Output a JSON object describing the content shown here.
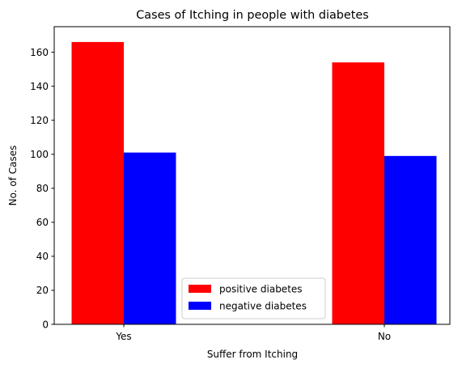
{
  "chart_data": {
    "type": "bar",
    "title": "Cases of Itching in people with diabetes",
    "xlabel": "Suffer from Itching",
    "ylabel": "No. of Cases",
    "categories": [
      "Yes",
      "No"
    ],
    "series": [
      {
        "name": "positive diabetes",
        "values": [
          166,
          154
        ],
        "color": "#ff0000"
      },
      {
        "name": "negative diabetes",
        "values": [
          101,
          99
        ],
        "color": "#0000ff"
      }
    ],
    "ylim": [
      0,
      175
    ],
    "yticks": [
      0,
      20,
      40,
      60,
      80,
      100,
      120,
      140,
      160
    ],
    "grid": false,
    "legend_position": "lower-center"
  }
}
